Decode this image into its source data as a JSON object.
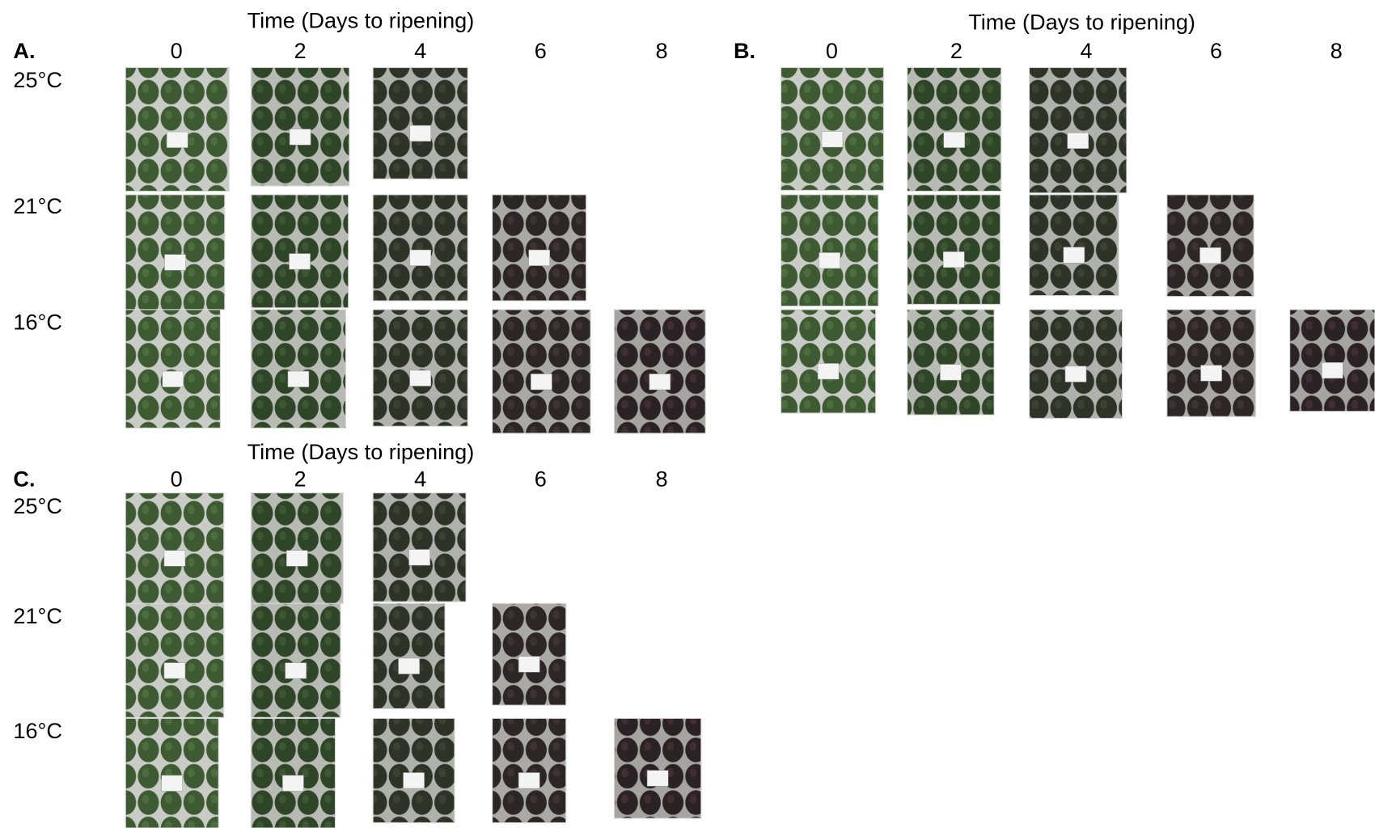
{
  "panels": [
    {
      "label": "A.",
      "title": "Time (Days to ripening)",
      "days": [
        0,
        2,
        4,
        6,
        8
      ],
      "temperatures": [
        "25°C",
        "21°C",
        "16°C"
      ]
    },
    {
      "label": "B.",
      "title": "Time (Days to ripening)",
      "days": [
        0,
        2,
        4,
        6,
        8
      ],
      "temperatures": []
    },
    {
      "label": "C.",
      "title": "Time (Days to ripening)",
      "days": [
        0,
        2,
        4,
        6,
        8
      ],
      "temperatures": [
        "25°C",
        "21°C",
        "16°C"
      ]
    }
  ]
}
